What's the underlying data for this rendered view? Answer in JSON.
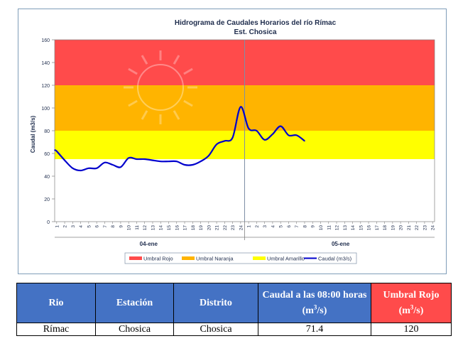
{
  "chart_data": {
    "type": "line",
    "title": "Hidrograma de Caudales Horarios del río Rímac",
    "subtitle": "Est. Chosica",
    "ylabel": "Caudal  (m3/s)",
    "ylim": [
      0,
      160
    ],
    "yticks": [
      0,
      20,
      40,
      60,
      80,
      100,
      120,
      140,
      160
    ],
    "xlim": [
      0.75,
      48.25
    ],
    "x_tick_labels": [
      "1",
      "2",
      "3",
      "4",
      "5",
      "6",
      "7",
      "8",
      "9",
      "10",
      "11",
      "12",
      "13",
      "14",
      "15",
      "16",
      "17",
      "18",
      "19",
      "20",
      "21",
      "22",
      "23",
      "24",
      "1",
      "2",
      "3",
      "4",
      "5",
      "6",
      "7",
      "8",
      "9",
      "10",
      "11",
      "12",
      "13",
      "14",
      "15",
      "16",
      "17",
      "18",
      "19",
      "20",
      "21",
      "22",
      "23",
      "24"
    ],
    "x_groups": [
      {
        "label": "04-ene",
        "from": 1,
        "to": 24
      },
      {
        "label": "05-ene",
        "from": 25,
        "to": 48
      }
    ],
    "divider_at": 24.5,
    "bands": [
      {
        "name": "Umbral Rojo",
        "from": 120,
        "to": 160,
        "color": "#ff4b4b"
      },
      {
        "name": "Umbral Naranja",
        "from": 80,
        "to": 120,
        "color": "#ffb400"
      },
      {
        "name": "Umbral Amarillo",
        "from": 55,
        "to": 80,
        "color": "#ffff00"
      }
    ],
    "series": [
      {
        "name": "Caudal (m3/s)",
        "color": "#0000cc",
        "x": [
          0.75,
          1,
          2,
          3,
          4,
          5,
          6,
          7,
          8,
          9,
          10,
          11,
          12,
          13,
          14,
          15,
          16,
          17,
          18,
          19,
          20,
          21,
          22,
          23,
          24,
          25,
          26,
          27,
          28,
          29,
          30,
          31,
          32
        ],
        "values": [
          63,
          62,
          54,
          47,
          45,
          47,
          47,
          52,
          50,
          48,
          56,
          55,
          55,
          54,
          53,
          53,
          53,
          50,
          50,
          53,
          58,
          68,
          71,
          74,
          101,
          82,
          80,
          72,
          77,
          84,
          76,
          76,
          71
        ]
      }
    ],
    "legend": {
      "position": "bottom",
      "items": [
        {
          "label": "Umbral Rojo",
          "color": "#ff4b4b",
          "kind": "box"
        },
        {
          "label": "Umbral Naranja",
          "color": "#ffb400",
          "kind": "box"
        },
        {
          "label": "Umbral Amarillo",
          "color": "#ffff00",
          "kind": "box"
        },
        {
          "label": "Caudal (m3/s)",
          "color": "#0000cc",
          "kind": "line"
        }
      ]
    },
    "grid": false
  },
  "table": {
    "headers": {
      "rio": "Rio",
      "estacion": "Estación",
      "distrito": "Distrito",
      "caudal_main": "Caudal a las 08:00 horas",
      "caudal_unit_base": "(m",
      "caudal_unit_sup": "3",
      "caudal_unit_end": "/s)",
      "umbral_main": "Umbral Rojo",
      "umbral_unit_base": "(m",
      "umbral_unit_sup": "3",
      "umbral_unit_end": "/s)"
    },
    "row": {
      "rio": "Rímac",
      "estacion": "Chosica",
      "distrito": "Chosica",
      "caudal": "71.4",
      "umbral": "120"
    }
  }
}
